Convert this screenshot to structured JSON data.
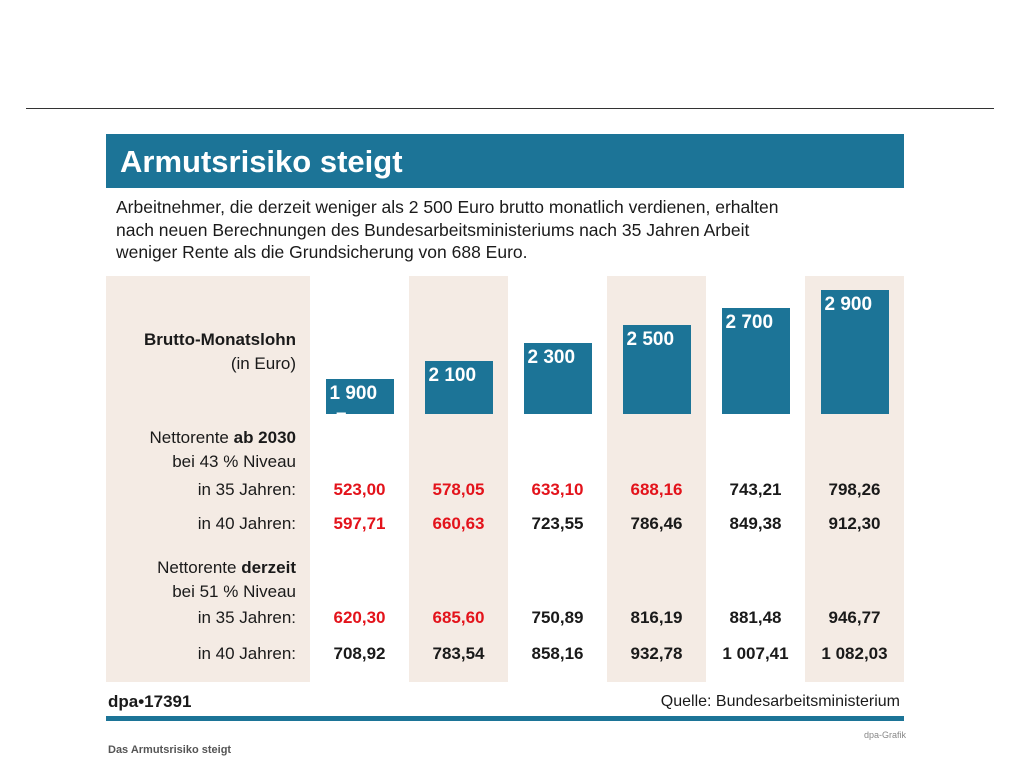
{
  "title": "Armutsrisiko steigt",
  "intro": [
    "Arbeitnehmer, die derzeit weniger als 2 500 Euro brutto monatlich verdienen, erhalten",
    "nach neuen Berechnungen des Bundesarbeitsministeriums nach 35 Jahren Arbeit",
    "weniger Rente als die Grundsicherung von 688 Euro."
  ],
  "row_labels": {
    "brutto_1": "Brutto-Monatslohn",
    "brutto_2": "(in Euro)",
    "ab2030_pre": "Nettorente ",
    "ab2030_bold": "ab 2030",
    "ab2030_sub": "bei 43 % Niveau",
    "derzeit_pre": "Nettorente ",
    "derzeit_bold": "derzeit",
    "derzeit_sub": "bei 51 % Niveau",
    "in35": "in 35 Jahren:",
    "in40": "in 40 Jahren:"
  },
  "bar_unit": "Euro",
  "footer": {
    "dpa": "dpa•17391",
    "source": "Quelle: Bundesarbeitsministerium"
  },
  "caption": "Das Armutsrisiko steigt",
  "credit": "dpa-Grafik",
  "colors": {
    "bar": "#1c7497",
    "shade": "#f4ebe4",
    "below_threshold": "#e3131b",
    "normal": "#1a1a1a"
  },
  "chart_data": {
    "type": "bar",
    "title": "Armutsrisiko steigt",
    "categories": [
      "1 900",
      "2 100",
      "2 300",
      "2 500",
      "2 700",
      "2 900"
    ],
    "values": [
      1900,
      2100,
      2300,
      2500,
      2700,
      2900
    ],
    "ylabel": "Brutto-Monatslohn (in Euro)",
    "table": {
      "ab2030_35": [
        "523,00",
        "578,05",
        "633,10",
        "688,16",
        "743,21",
        "798,26"
      ],
      "ab2030_40": [
        "597,71",
        "660,63",
        "723,55",
        "786,46",
        "849,38",
        "912,30"
      ],
      "derzeit_35": [
        "620,30",
        "685,60",
        "750,89",
        "816,19",
        "881,48",
        "946,77"
      ],
      "derzeit_40": [
        "708,92",
        "783,54",
        "858,16",
        "932,78",
        "1 007,41",
        "1 082,03"
      ]
    },
    "red_flags": {
      "ab2030_35": [
        true,
        true,
        true,
        true,
        false,
        false
      ],
      "ab2030_40": [
        true,
        true,
        false,
        false,
        false,
        false
      ],
      "derzeit_35": [
        true,
        true,
        false,
        false,
        false,
        false
      ],
      "derzeit_40": [
        false,
        false,
        false,
        false,
        false,
        false
      ]
    }
  }
}
